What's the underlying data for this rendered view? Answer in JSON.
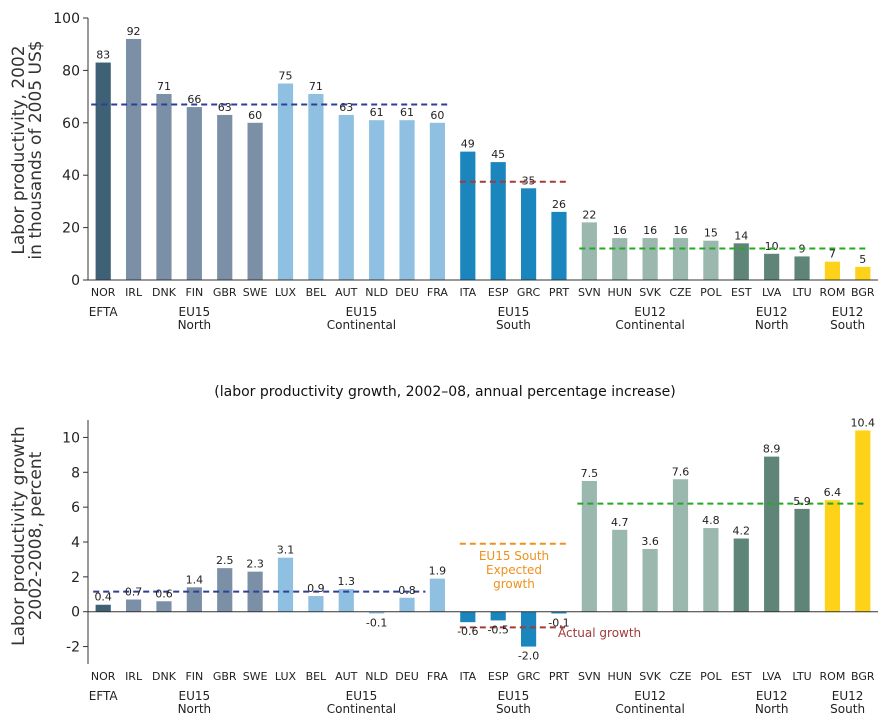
{
  "subtitle": "(labor productivity growth, 2002–08, annual percentage increase)",
  "colors": {
    "EFTA": "#3f6176",
    "EU15_North": "#7b90a6",
    "EU15_Continental": "#8fc0e2",
    "EU15_South": "#1a86bd",
    "EU12_Continental": "#9bb8ae",
    "EU12_North": "#5e8578",
    "EU12_South": "#ffd21a",
    "avg_EU15_North": "#2e3f99",
    "avg_EU15_South": "#a23a3a",
    "avg_EU12": "#22aa22",
    "expected_EU15_South": "#f0901c"
  },
  "groups": [
    {
      "line1": "EFTA",
      "line2": ""
    },
    {
      "line1": "EU15",
      "line2": "North"
    },
    {
      "line1": "EU15",
      "line2": "Continental"
    },
    {
      "line1": "EU15",
      "line2": "South"
    },
    {
      "line1": "EU12",
      "line2": "Continental"
    },
    {
      "line1": "EU12",
      "line2": "North"
    },
    {
      "line1": "EU12",
      "line2": "South"
    }
  ],
  "chart_data": [
    {
      "type": "bar",
      "ylabel_line1": "Labor productivity, 2002",
      "ylabel_line2": "in thousands of 2005 US$",
      "ylim": [
        0,
        100
      ],
      "yticks": [
        "0",
        "20",
        "40",
        "60",
        "80",
        "100"
      ],
      "categories": [
        "NOR",
        "IRL",
        "DNK",
        "FIN",
        "GBR",
        "SWE",
        "LUX",
        "BEL",
        "AUT",
        "NLD",
        "DEU",
        "FRA",
        "ITA",
        "ESP",
        "GRC",
        "PRT",
        "SVN",
        "HUN",
        "SVK",
        "CZE",
        "POL",
        "EST",
        "LVA",
        "LTU",
        "ROM",
        "BGR"
      ],
      "values": [
        83,
        92,
        71,
        66,
        63,
        60,
        75,
        71,
        63,
        61,
        61,
        60,
        49,
        45,
        35,
        26,
        22,
        16,
        16,
        16,
        15,
        14,
        10,
        9,
        7,
        5
      ],
      "labels": [
        "83",
        "92",
        "71",
        "66",
        "63",
        "60",
        "75",
        "71",
        "63",
        "61",
        "61",
        "60",
        "49",
        "45",
        "35",
        "26",
        "22",
        "16",
        "16",
        "16",
        "15",
        "14",
        "10",
        "9",
        "7",
        "5"
      ],
      "reference_lines": [
        {
          "group": "EU15 North/Continental",
          "value": 67,
          "color": "#2e3f99"
        },
        {
          "group": "EU15 South",
          "value": 37.5,
          "color": "#a23a3a"
        },
        {
          "group": "EU12",
          "value": 12,
          "color": "#22aa22"
        }
      ]
    },
    {
      "type": "bar",
      "ylabel_line1": "Labor productivity growth",
      "ylabel_line2": "2002-2008, percent",
      "ylim": [
        -3,
        11
      ],
      "yticks": [
        "-2",
        "0",
        "2",
        "4",
        "6",
        "8",
        "10"
      ],
      "categories": [
        "NOR",
        "IRL",
        "DNK",
        "FIN",
        "GBR",
        "SWE",
        "LUX",
        "BEL",
        "AUT",
        "NLD",
        "DEU",
        "FRA",
        "ITA",
        "ESP",
        "GRC",
        "PRT",
        "SVN",
        "HUN",
        "SVK",
        "CZE",
        "POL",
        "EST",
        "LVA",
        "LTU",
        "ROM",
        "BGR"
      ],
      "values": [
        0.4,
        0.7,
        0.6,
        1.4,
        2.5,
        2.3,
        3.1,
        0.9,
        1.3,
        -0.1,
        0.8,
        1.9,
        -0.6,
        -0.5,
        -2.0,
        -0.1,
        7.5,
        4.7,
        3.6,
        7.6,
        4.8,
        4.2,
        8.9,
        5.9,
        6.4,
        10.4
      ],
      "labels": [
        "0.4",
        "0.7",
        "0.6",
        "1.4",
        "2.5",
        "2.3",
        "3.1",
        "0.9",
        "1.3",
        "-0.1",
        "0.8",
        "1.9",
        "-0.6",
        "-0.5",
        "-2.0",
        "-0.1",
        "7.5",
        "4.7",
        "3.6",
        "7.6",
        "4.8",
        "4.2",
        "8.9",
        "5.9",
        "6.4",
        "10.4"
      ],
      "reference_lines": [
        {
          "group": "EU15 North/Continental",
          "value": 1.15,
          "color": "#2e3f99"
        },
        {
          "group": "EU15 South expected",
          "value": 3.9,
          "color": "#f0901c"
        },
        {
          "group": "EU15 South actual",
          "value": -0.9,
          "color": "#a23a3a"
        },
        {
          "group": "EU12",
          "value": 6.2,
          "color": "#22aa22"
        }
      ],
      "annotations": {
        "expected_line1": "EU15 South",
        "expected_line2": "Expected",
        "expected_line3": "growth",
        "actual": "Actual growth"
      }
    }
  ]
}
